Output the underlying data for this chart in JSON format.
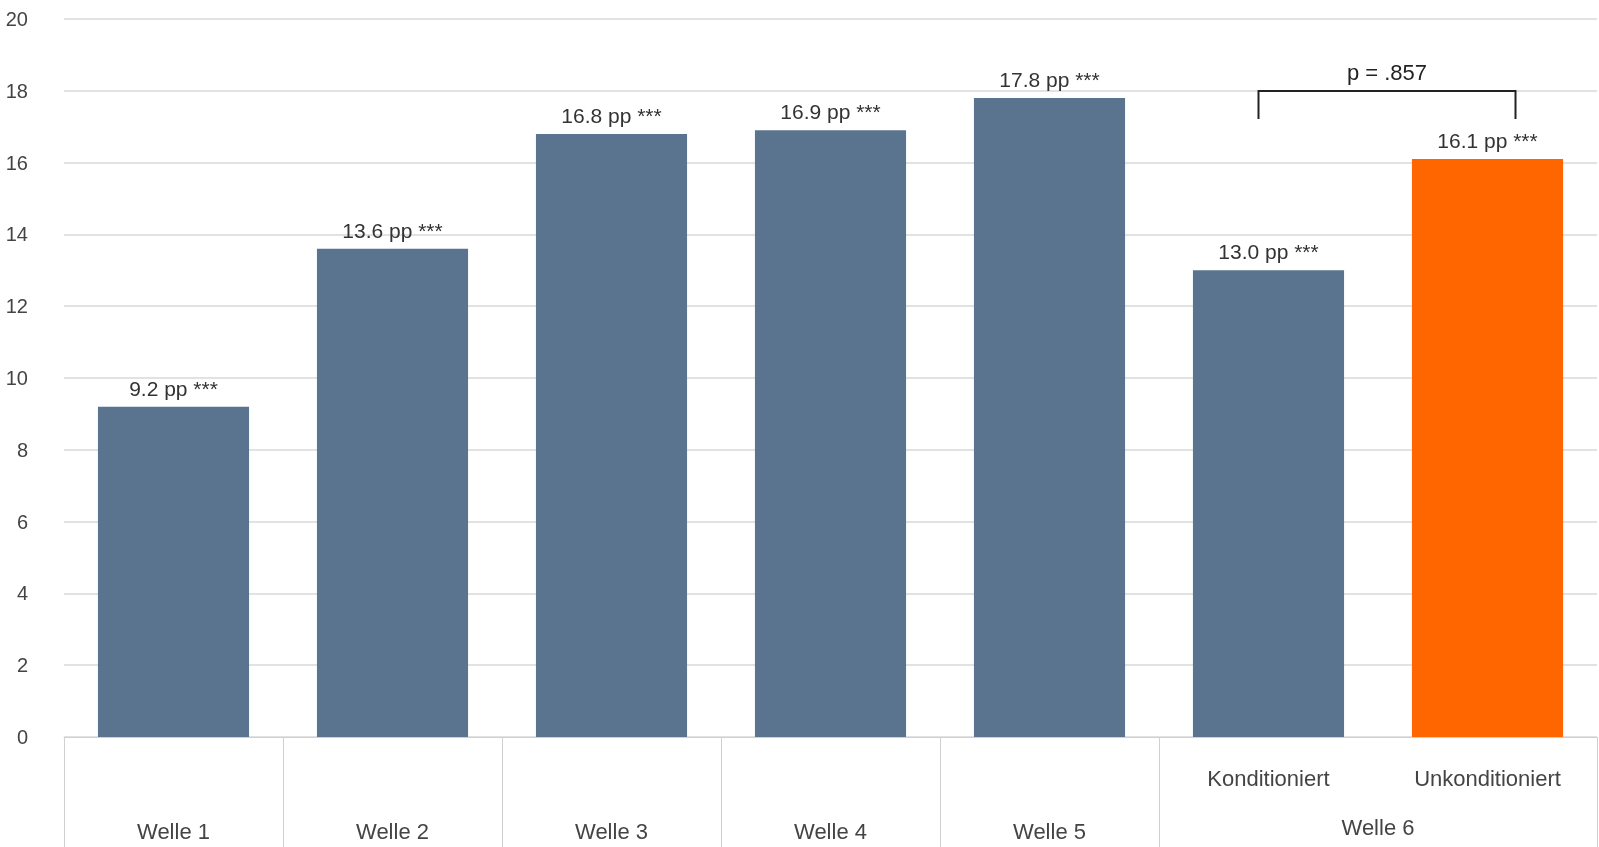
{
  "chart_data": {
    "type": "bar",
    "categories": [
      "Welle 1",
      "Welle 2",
      "Welle 3",
      "Welle 4",
      "Welle 5",
      "Konditioniert",
      "Unkonditioniert"
    ],
    "values": [
      9.2,
      13.6,
      16.8,
      16.9,
      17.8,
      13.0,
      16.1
    ],
    "colors": [
      "#5a738e",
      "#5a738e",
      "#5a738e",
      "#5a738e",
      "#5a738e",
      "#5a738e",
      "#ff6600"
    ],
    "value_labels": [
      "9.2 pp ***",
      "13.6 pp ***",
      "16.8 pp ***",
      "16.9 pp ***",
      "17.8 pp ***",
      "13.0 pp ***",
      "16.1 pp ***"
    ],
    "ylim": [
      0,
      20
    ],
    "yticks": [
      0,
      2,
      4,
      6,
      8,
      10,
      12,
      14,
      16,
      18,
      20
    ],
    "grid": "y",
    "annotations": [
      "p = .857",
      "Welle 6"
    ]
  }
}
